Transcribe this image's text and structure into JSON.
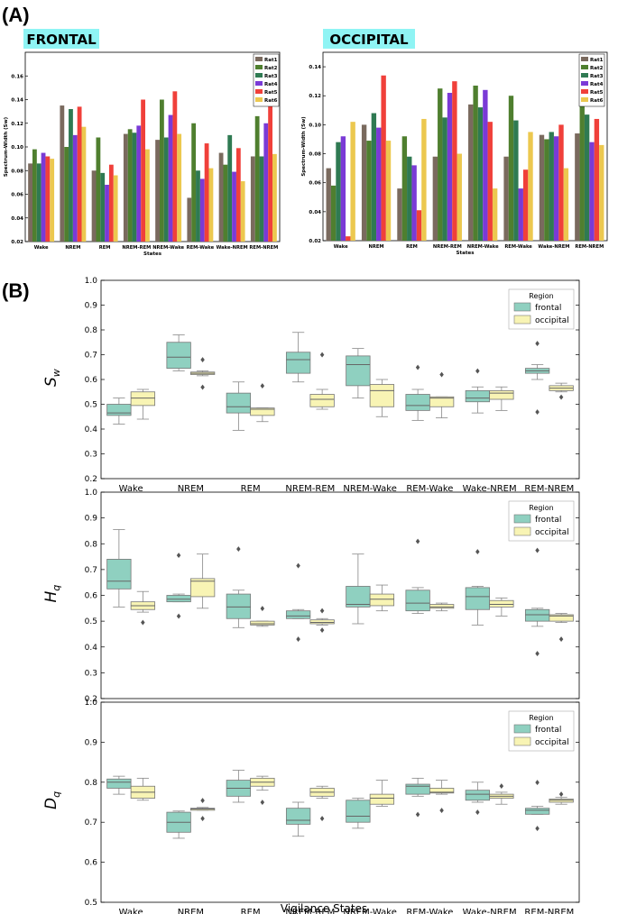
{
  "panel_a_label": "(A)",
  "panel_b_label": "(B)",
  "colors": {
    "rats": [
      "#7a6a5e",
      "#4f7f2f",
      "#2f7a52",
      "#7a3ad6",
      "#f0403a",
      "#ecc84f"
    ],
    "frontal": "#8fd0c0",
    "occipital": "#f8f4b4",
    "region_title_bg": "#8ff4f4"
  },
  "chart_data": [
    {
      "type": "bar",
      "title": "FRONTAL",
      "xlabel": "States",
      "ylabel": "Spectrum-Width (Sw)",
      "ylim": [
        0.02,
        0.18
      ],
      "yticks": [
        "0.02",
        "0.04",
        "0.06",
        "0.08",
        "0.10",
        "0.12",
        "0.14",
        "0.16"
      ],
      "legend_position": "top-right",
      "categories": [
        "Wake",
        "NREM",
        "REM",
        "NREM-REM",
        "NREM-Wake",
        "REM-Wake",
        "Wake-NREM",
        "REM-NREM"
      ],
      "series": [
        {
          "name": "Rat1",
          "values": [
            0.086,
            0.135,
            0.08,
            0.111,
            0.106,
            0.057,
            0.095,
            0.092
          ]
        },
        {
          "name": "Rat2",
          "values": [
            0.098,
            0.1,
            0.108,
            0.115,
            0.14,
            0.12,
            0.085,
            0.126
          ]
        },
        {
          "name": "Rat3",
          "values": [
            0.086,
            0.132,
            0.078,
            0.112,
            0.108,
            0.08,
            0.11,
            0.092
          ]
        },
        {
          "name": "Rat4",
          "values": [
            0.095,
            0.11,
            0.068,
            0.118,
            0.127,
            0.073,
            0.079,
            0.12
          ]
        },
        {
          "name": "Rat5",
          "values": [
            0.092,
            0.134,
            0.085,
            0.14,
            0.147,
            0.103,
            0.099,
            0.17
          ]
        },
        {
          "name": "Rat6",
          "values": [
            0.09,
            0.117,
            0.076,
            0.098,
            0.111,
            0.082,
            0.071,
            0.094
          ]
        }
      ]
    },
    {
      "type": "bar",
      "title": "OCCIPITAL",
      "xlabel": "States",
      "ylabel": "Spectrum-Width (Sw)",
      "ylim": [
        0.02,
        0.15
      ],
      "yticks": [
        "0.02",
        "0.04",
        "0.06",
        "0.08",
        "0.10",
        "0.12",
        "0.14"
      ],
      "legend_position": "top-right",
      "categories": [
        "Wake",
        "NREM",
        "REM",
        "NREM-REM",
        "NREM-Wake",
        "REM-Wake",
        "Wake-NREM",
        "REM-NREM"
      ],
      "series": [
        {
          "name": "Rat1",
          "values": [
            0.07,
            0.1,
            0.056,
            0.078,
            0.114,
            0.078,
            0.093,
            0.094
          ]
        },
        {
          "name": "Rat2",
          "values": [
            0.058,
            0.089,
            0.092,
            0.125,
            0.127,
            0.12,
            0.09,
            0.113
          ]
        },
        {
          "name": "Rat3",
          "values": [
            0.088,
            0.108,
            0.078,
            0.105,
            0.112,
            0.103,
            0.095,
            0.107
          ]
        },
        {
          "name": "Rat4",
          "values": [
            0.092,
            0.098,
            0.072,
            0.122,
            0.124,
            0.056,
            0.092,
            0.088
          ]
        },
        {
          "name": "Rat5",
          "values": [
            0.023,
            0.134,
            0.041,
            0.13,
            0.102,
            0.069,
            0.1,
            0.104
          ]
        },
        {
          "name": "Rat6",
          "values": [
            0.102,
            0.089,
            0.104,
            0.08,
            0.056,
            0.095,
            0.07,
            0.086
          ]
        }
      ]
    },
    {
      "type": "box",
      "ylabel": "S_w",
      "ylim": [
        0.2,
        1.0
      ],
      "yticks": [
        "0.2",
        "0.3",
        "0.4",
        "0.5",
        "0.6",
        "0.7",
        "0.8",
        "0.9",
        "1.0"
      ],
      "legend_title": "Region",
      "legend_position": "top-right",
      "legend": [
        "frontal",
        "occipital"
      ],
      "categories": [
        "Wake",
        "NREM",
        "REM",
        "NREM-REM",
        "NREM-Wake",
        "REM-Wake",
        "Wake-NREM",
        "REM-NREM"
      ],
      "frontal": [
        {
          "min": 0.42,
          "q1": 0.455,
          "med": 0.465,
          "q3": 0.5,
          "max": 0.525,
          "out": []
        },
        {
          "min": 0.635,
          "q1": 0.645,
          "med": 0.69,
          "q3": 0.75,
          "max": 0.78,
          "out": []
        },
        {
          "min": 0.395,
          "q1": 0.465,
          "med": 0.49,
          "q3": 0.545,
          "max": 0.59,
          "out": []
        },
        {
          "min": 0.59,
          "q1": 0.625,
          "med": 0.68,
          "q3": 0.71,
          "max": 0.79,
          "out": []
        },
        {
          "min": 0.525,
          "q1": 0.575,
          "med": 0.66,
          "q3": 0.695,
          "max": 0.725,
          "out": []
        },
        {
          "min": 0.435,
          "q1": 0.475,
          "med": 0.495,
          "q3": 0.54,
          "max": 0.56,
          "out": [
            0.65
          ]
        },
        {
          "min": 0.465,
          "q1": 0.51,
          "med": 0.525,
          "q3": 0.555,
          "max": 0.57,
          "out": [
            0.635
          ]
        },
        {
          "min": 0.6,
          "q1": 0.625,
          "med": 0.635,
          "q3": 0.645,
          "max": 0.66,
          "out": [
            0.745,
            0.47
          ]
        }
      ],
      "occipital": [
        {
          "min": 0.44,
          "q1": 0.495,
          "med": 0.525,
          "q3": 0.55,
          "max": 0.56,
          "out": []
        },
        {
          "min": 0.615,
          "q1": 0.62,
          "med": 0.625,
          "q3": 0.63,
          "max": 0.635,
          "out": [
            0.68,
            0.57
          ]
        },
        {
          "min": 0.43,
          "q1": 0.455,
          "med": 0.48,
          "q3": 0.485,
          "max": 0.485,
          "out": [
            0.575
          ]
        },
        {
          "min": 0.48,
          "q1": 0.49,
          "med": 0.52,
          "q3": 0.54,
          "max": 0.56,
          "out": [
            0.7
          ]
        },
        {
          "min": 0.45,
          "q1": 0.49,
          "med": 0.555,
          "q3": 0.58,
          "max": 0.6,
          "out": []
        },
        {
          "min": 0.445,
          "q1": 0.49,
          "med": 0.525,
          "q3": 0.53,
          "max": 0.53,
          "out": [
            0.62
          ]
        },
        {
          "min": 0.475,
          "q1": 0.52,
          "med": 0.545,
          "q3": 0.555,
          "max": 0.57,
          "out": []
        },
        {
          "min": 0.55,
          "q1": 0.555,
          "med": 0.565,
          "q3": 0.575,
          "max": 0.585,
          "out": [
            0.53
          ]
        }
      ]
    },
    {
      "type": "box",
      "ylabel": "H_q",
      "ylim": [
        0.2,
        1.0
      ],
      "yticks": [
        "0.2",
        "0.3",
        "0.4",
        "0.5",
        "0.6",
        "0.7",
        "0.8",
        "0.9",
        "1.0"
      ],
      "legend_title": "Region",
      "legend_position": "top-right",
      "legend": [
        "frontal",
        "occipital"
      ],
      "categories": [
        "Wake",
        "NREM",
        "REM",
        "NREM-REM",
        "NREM-Wake",
        "REM-Wake",
        "Wake-NREM",
        "REM-NREM"
      ],
      "frontal": [
        {
          "min": 0.555,
          "q1": 0.625,
          "med": 0.655,
          "q3": 0.74,
          "max": 0.855,
          "out": []
        },
        {
          "min": 0.575,
          "q1": 0.575,
          "med": 0.585,
          "q3": 0.6,
          "max": 0.605,
          "out": [
            0.755,
            0.52
          ]
        },
        {
          "min": 0.475,
          "q1": 0.51,
          "med": 0.555,
          "q3": 0.605,
          "max": 0.62,
          "out": [
            0.78
          ]
        },
        {
          "min": 0.51,
          "q1": 0.51,
          "med": 0.52,
          "q3": 0.54,
          "max": 0.545,
          "out": [
            0.715,
            0.43
          ]
        },
        {
          "min": 0.49,
          "q1": 0.555,
          "med": 0.565,
          "q3": 0.635,
          "max": 0.76,
          "out": []
        },
        {
          "min": 0.53,
          "q1": 0.54,
          "med": 0.57,
          "q3": 0.62,
          "max": 0.63,
          "out": [
            0.81
          ]
        },
        {
          "min": 0.485,
          "q1": 0.545,
          "med": 0.595,
          "q3": 0.63,
          "max": 0.635,
          "out": [
            0.77
          ]
        },
        {
          "min": 0.48,
          "q1": 0.5,
          "med": 0.525,
          "q3": 0.545,
          "max": 0.55,
          "out": [
            0.775,
            0.375
          ]
        }
      ],
      "occipital": [
        {
          "min": 0.535,
          "q1": 0.545,
          "med": 0.56,
          "q3": 0.575,
          "max": 0.615,
          "out": [
            0.495
          ]
        },
        {
          "min": 0.55,
          "q1": 0.595,
          "med": 0.655,
          "q3": 0.665,
          "max": 0.76,
          "out": []
        },
        {
          "min": 0.48,
          "q1": 0.485,
          "med": 0.49,
          "q3": 0.5,
          "max": 0.5,
          "out": [
            0.55
          ]
        },
        {
          "min": 0.485,
          "q1": 0.49,
          "med": 0.495,
          "q3": 0.505,
          "max": 0.51,
          "out": [
            0.54,
            0.465
          ]
        },
        {
          "min": 0.54,
          "q1": 0.56,
          "med": 0.585,
          "q3": 0.605,
          "max": 0.64,
          "out": []
        },
        {
          "min": 0.54,
          "q1": 0.55,
          "med": 0.555,
          "q3": 0.565,
          "max": 0.57,
          "out": []
        },
        {
          "min": 0.52,
          "q1": 0.555,
          "med": 0.565,
          "q3": 0.58,
          "max": 0.59,
          "out": []
        },
        {
          "min": 0.495,
          "q1": 0.5,
          "med": 0.52,
          "q3": 0.525,
          "max": 0.53,
          "out": [
            0.43
          ]
        }
      ]
    },
    {
      "type": "box",
      "ylabel": "D_q",
      "xlabel": "Vigilance States",
      "ylim": [
        0.5,
        1.0
      ],
      "yticks": [
        "0.5",
        "0.6",
        "0.7",
        "0.8",
        "0.9",
        "1.0"
      ],
      "legend_title": "Region",
      "legend_position": "top-right",
      "legend": [
        "frontal",
        "occipital"
      ],
      "categories": [
        "Wake",
        "NREM",
        "REM",
        "NREM-REM",
        "NREM-Wake",
        "REM-Wake",
        "Wake-NREM",
        "REM-NREM"
      ],
      "frontal": [
        {
          "min": 0.77,
          "q1": 0.785,
          "med": 0.8,
          "q3": 0.808,
          "max": 0.815,
          "out": []
        },
        {
          "min": 0.66,
          "q1": 0.675,
          "med": 0.7,
          "q3": 0.725,
          "max": 0.728,
          "out": []
        },
        {
          "min": 0.75,
          "q1": 0.765,
          "med": 0.785,
          "q3": 0.805,
          "max": 0.83,
          "out": []
        },
        {
          "min": 0.665,
          "q1": 0.695,
          "med": 0.705,
          "q3": 0.735,
          "max": 0.75,
          "out": []
        },
        {
          "min": 0.685,
          "q1": 0.7,
          "med": 0.715,
          "q3": 0.755,
          "max": 0.76,
          "out": []
        },
        {
          "min": 0.765,
          "q1": 0.77,
          "med": 0.79,
          "q3": 0.795,
          "max": 0.81,
          "out": [
            0.72
          ]
        },
        {
          "min": 0.75,
          "q1": 0.755,
          "med": 0.77,
          "q3": 0.78,
          "max": 0.8,
          "out": [
            0.725
          ]
        },
        {
          "min": 0.72,
          "q1": 0.72,
          "med": 0.73,
          "q3": 0.735,
          "max": 0.74,
          "out": [
            0.8,
            0.685
          ]
        }
      ],
      "occipital": [
        {
          "min": 0.755,
          "q1": 0.76,
          "med": 0.775,
          "q3": 0.79,
          "max": 0.81,
          "out": []
        },
        {
          "min": 0.73,
          "q1": 0.73,
          "med": 0.733,
          "q3": 0.735,
          "max": 0.737,
          "out": [
            0.755,
            0.71
          ]
        },
        {
          "min": 0.78,
          "q1": 0.79,
          "med": 0.8,
          "q3": 0.81,
          "max": 0.815,
          "out": [
            0.75
          ]
        },
        {
          "min": 0.76,
          "q1": 0.765,
          "med": 0.775,
          "q3": 0.785,
          "max": 0.79,
          "out": [
            0.71
          ]
        },
        {
          "min": 0.74,
          "q1": 0.745,
          "med": 0.76,
          "q3": 0.77,
          "max": 0.805,
          "out": []
        },
        {
          "min": 0.77,
          "q1": 0.773,
          "med": 0.775,
          "q3": 0.785,
          "max": 0.805,
          "out": [
            0.73
          ]
        },
        {
          "min": 0.745,
          "q1": 0.76,
          "med": 0.765,
          "q3": 0.77,
          "max": 0.775,
          "out": [
            0.79
          ]
        },
        {
          "min": 0.745,
          "q1": 0.75,
          "med": 0.755,
          "q3": 0.758,
          "max": 0.762,
          "out": [
            0.77
          ]
        }
      ]
    }
  ]
}
